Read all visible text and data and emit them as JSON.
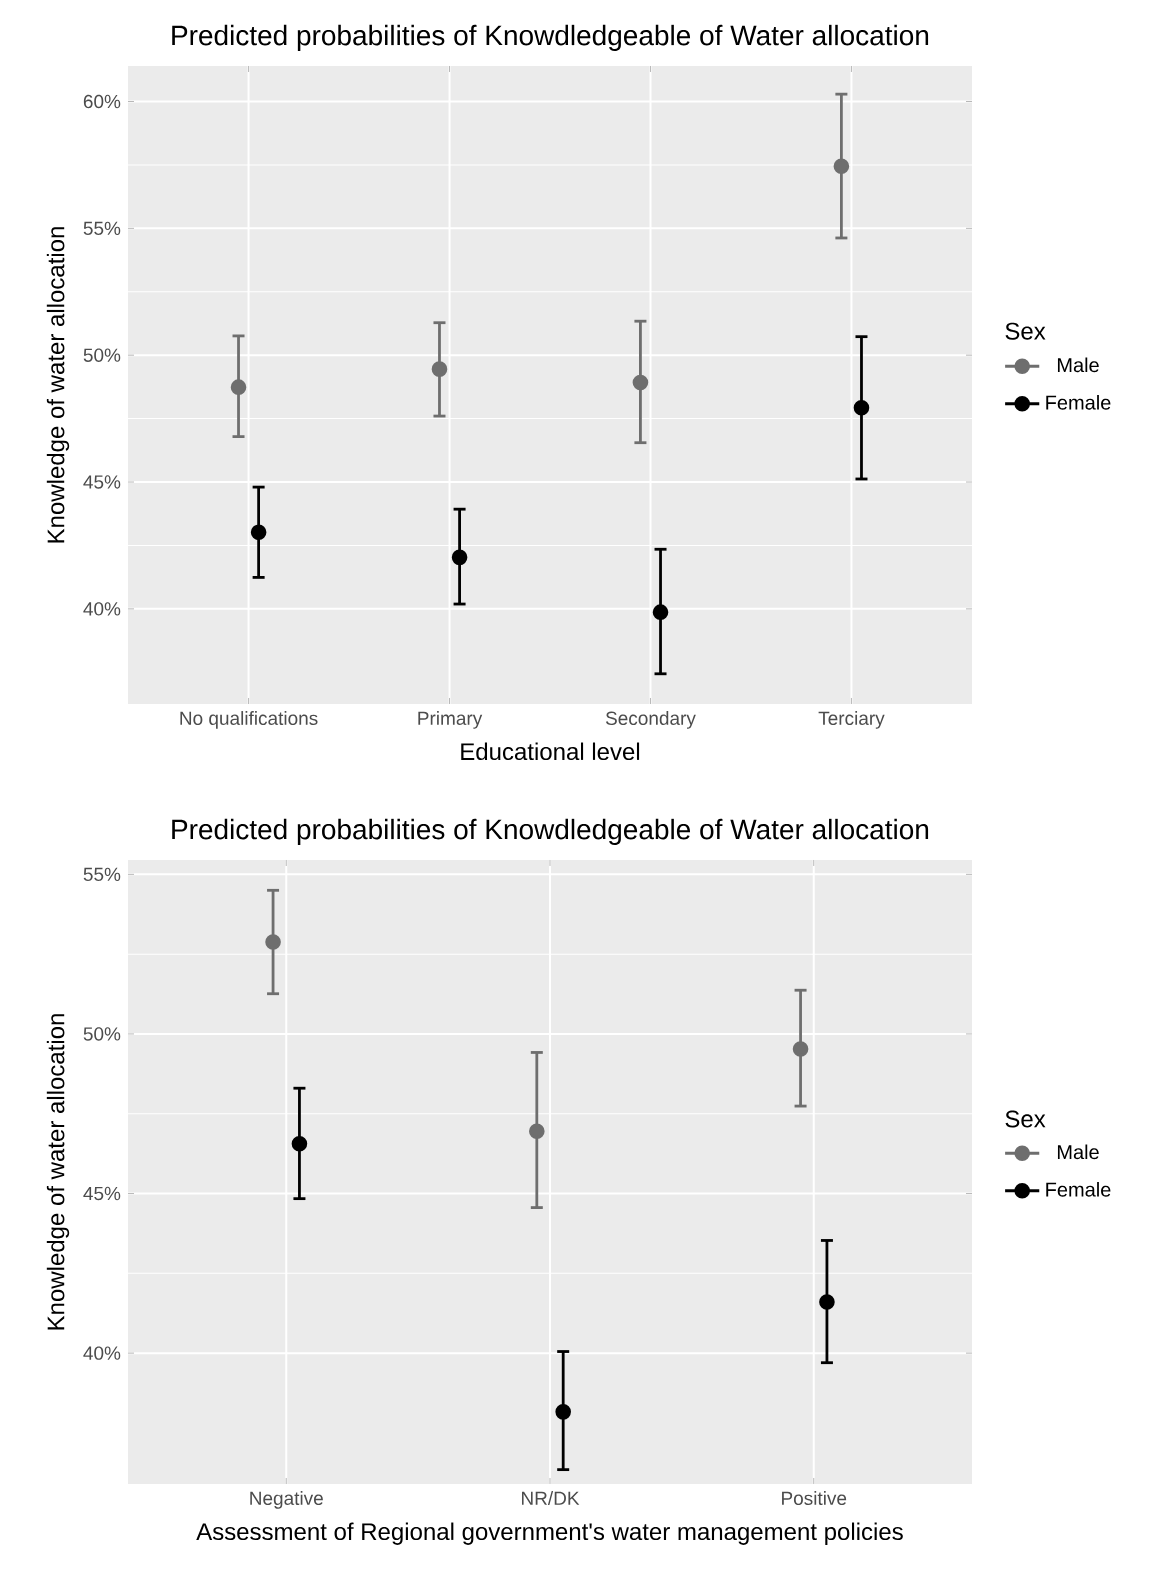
{
  "chart_data": [
    {
      "type": "scatter",
      "title": "Predicted probabilities of Knowdledgeable of Water allocation",
      "xlabel": "Educational level",
      "ylabel": "Knowledge of water allocation",
      "legend_title": "Sex",
      "categories": [
        "No qualifications",
        "Primary",
        "Secondary",
        "Terciary"
      ],
      "series": [
        {
          "name": "Male",
          "color": "#6e6e6e",
          "values": [
            48.74,
            49.45,
            48.92,
            57.45
          ],
          "errors": [
            [
              46.79,
              50.76
            ],
            [
              47.6,
              51.28
            ],
            [
              46.55,
              51.34
            ],
            [
              54.62,
              60.29
            ]
          ]
        },
        {
          "name": "Female",
          "color": "#000000",
          "values": [
            43.02,
            42.03,
            39.87,
            47.93
          ],
          "errors": [
            [
              41.24,
              44.8
            ],
            [
              40.19,
              43.93
            ],
            [
              37.44,
              42.35
            ],
            [
              45.12,
              50.73
            ]
          ]
        }
      ],
      "ylim": [
        36.25,
        61.4
      ],
      "yticks": [
        {
          "value": 40,
          "label": "40%"
        },
        {
          "value": 45,
          "label": "45%"
        },
        {
          "value": 50,
          "label": "50%"
        },
        {
          "value": 55,
          "label": "55%"
        },
        {
          "value": 60,
          "label": "60%"
        }
      ],
      "grid": true,
      "legend": "right",
      "marker": "circle"
    },
    {
      "type": "scatter",
      "title": "Predicted probabilities of Knowdledgeable of Water allocation",
      "xlabel": "Assessment of Regional government's water management policies",
      "ylabel": "Knowledge of water allocation",
      "legend_title": "Sex",
      "categories": [
        "Negative",
        "NR/DK",
        "Positive"
      ],
      "series": [
        {
          "name": "Male",
          "color": "#6e6e6e",
          "values": [
            52.88,
            46.95,
            49.53
          ],
          "errors": [
            [
              51.26,
              54.5
            ],
            [
              44.56,
              49.42
            ],
            [
              47.74,
              51.37
            ]
          ]
        },
        {
          "name": "Female",
          "color": "#000000",
          "values": [
            46.56,
            38.16,
            41.6
          ],
          "errors": [
            [
              44.84,
              48.3
            ],
            [
              36.35,
              40.05
            ],
            [
              39.7,
              43.53
            ]
          ]
        }
      ],
      "ylim": [
        35.9,
        55.45
      ],
      "yticks": [
        {
          "value": 40,
          "label": "40%"
        },
        {
          "value": 45,
          "label": "45%"
        },
        {
          "value": 50,
          "label": "50%"
        },
        {
          "value": 55,
          "label": "55%"
        }
      ],
      "grid": true,
      "legend": "right",
      "marker": "circle"
    }
  ]
}
